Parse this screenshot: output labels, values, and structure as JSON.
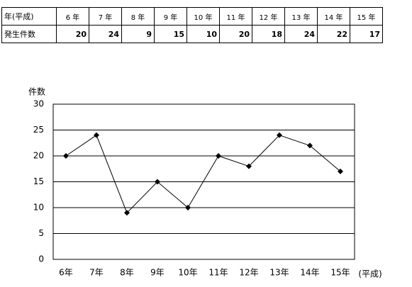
{
  "table": {
    "rows": [
      [
        "年(平成)",
        "6 年",
        "7 年",
        "8 年",
        "9 年",
        "10 年",
        "11 年",
        "12 年",
        "13 年",
        "14 年",
        "15 年"
      ],
      [
        "発生件数",
        20,
        24,
        9,
        15,
        10,
        20,
        18,
        24,
        22,
        17
      ]
    ]
  },
  "chart_data": {
    "type": "line",
    "y_label": "件数",
    "x_label": "(平成)",
    "categories": [
      "6年",
      "7年",
      "8年",
      "9年",
      "10年",
      "11年",
      "12年",
      "13年",
      "14年",
      "15年"
    ],
    "values": [
      20,
      24,
      9,
      15,
      10,
      20,
      18,
      24,
      22,
      17
    ],
    "color": "#000000",
    "ylim": [
      0,
      30
    ],
    "yticks": [
      0,
      5,
      10,
      15,
      20,
      25,
      30
    ],
    "grid": true
  }
}
